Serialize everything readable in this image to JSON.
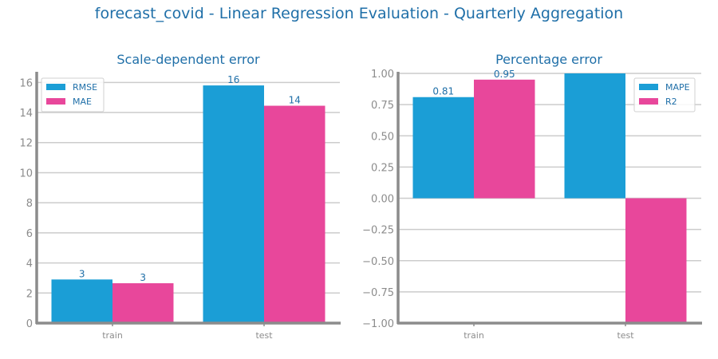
{
  "title": "forecast_covid - Linear Regression Evaluation - Quarterly Aggregation",
  "colors": {
    "series1": "#1b9ed6",
    "series2": "#e8479b",
    "title": "#1f6fa8",
    "axis": "#8c8c8c",
    "grid": "#cccccc",
    "label": "#1f6fa8"
  },
  "chart_data": [
    {
      "type": "bar",
      "title": "Scale-dependent error",
      "categories": [
        "train",
        "test"
      ],
      "series": [
        {
          "name": "RMSE",
          "values": [
            2.9,
            15.8
          ],
          "labels": [
            "3",
            "16"
          ]
        },
        {
          "name": "MAE",
          "values": [
            2.65,
            14.45
          ],
          "labels": [
            "3",
            "14"
          ]
        }
      ],
      "ylim": [
        0,
        16.6
      ],
      "yticks": [
        0,
        2,
        4,
        6,
        8,
        10,
        12,
        14,
        16
      ],
      "ytick_labels": [
        "0",
        "2",
        "4",
        "6",
        "8",
        "10",
        "12",
        "14",
        "16"
      ],
      "grid": true,
      "legend_position": "top-left"
    },
    {
      "type": "bar",
      "title": "Percentage error",
      "categories": [
        "train",
        "test"
      ],
      "series": [
        {
          "name": "MAPE",
          "values": [
            0.81,
            1.0
          ],
          "labels": [
            "0.81",
            ""
          ]
        },
        {
          "name": "R2",
          "values": [
            0.95,
            -1.0
          ],
          "labels": [
            "0.95",
            ""
          ]
        }
      ],
      "ylim": [
        -1.0,
        1.0
      ],
      "yticks": [
        -1.0,
        -0.75,
        -0.5,
        -0.25,
        0.0,
        0.25,
        0.5,
        0.75,
        1.0
      ],
      "ytick_labels": [
        "−1.00",
        "−0.75",
        "−0.50",
        "−0.25",
        "0.00",
        "0.25",
        "0.50",
        "0.75",
        "1.00"
      ],
      "grid": true,
      "legend_position": "top-right"
    }
  ]
}
